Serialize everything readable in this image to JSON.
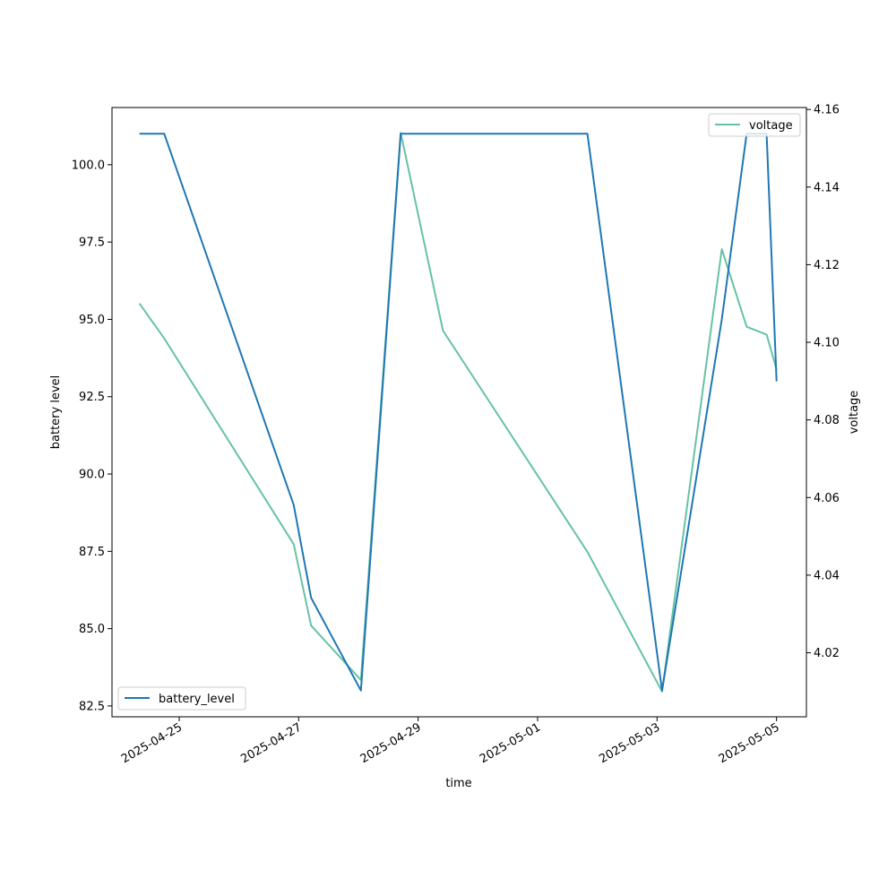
{
  "chart_data": {
    "type": "line",
    "xlabel": "time",
    "ylabel": "battery level",
    "y2label": "voltage",
    "xlim": [
      "2025-04-23 21:00",
      "2025-05-05 12:00"
    ],
    "ylim": [
      82.15,
      101.85
    ],
    "y2lim": [
      4.0035,
      4.1605
    ],
    "x_ticks": [
      "2025-04-25",
      "2025-04-27",
      "2025-04-29",
      "2025-05-01",
      "2025-05-03",
      "2025-05-05"
    ],
    "y_ticks": [
      "82.5",
      "85.0",
      "87.5",
      "90.0",
      "92.5",
      "95.0",
      "97.5",
      "100.0"
    ],
    "y2_ticks": [
      "4.02",
      "4.04",
      "4.06",
      "4.08",
      "4.10",
      "4.12",
      "4.14",
      "4.16"
    ],
    "grid": false,
    "series": [
      {
        "name": "battery_level",
        "axis": "left",
        "color": "#1f77b4",
        "legend": "lower-left",
        "points": [
          {
            "x": "2025-04-24 08:00",
            "y": 101
          },
          {
            "x": "2025-04-24 18:00",
            "y": 101
          },
          {
            "x": "2025-04-26 22:00",
            "y": 89
          },
          {
            "x": "2025-04-27 05:00",
            "y": 86
          },
          {
            "x": "2025-04-28 01:00",
            "y": 83
          },
          {
            "x": "2025-04-28 17:00",
            "y": 101
          },
          {
            "x": "2025-05-01 20:00",
            "y": 101
          },
          {
            "x": "2025-05-03 02:00",
            "y": 83
          },
          {
            "x": "2025-05-04 02:00",
            "y": 95
          },
          {
            "x": "2025-05-04 12:00",
            "y": 101
          },
          {
            "x": "2025-05-04 20:00",
            "y": 101
          },
          {
            "x": "2025-05-05 00:00",
            "y": 93
          }
        ]
      },
      {
        "name": "voltage",
        "axis": "right",
        "color": "#66c2a5",
        "legend": "upper-right",
        "points": [
          {
            "x": "2025-04-24 08:00",
            "y": 4.11
          },
          {
            "x": "2025-04-24 18:00",
            "y": 4.101
          },
          {
            "x": "2025-04-26 22:00",
            "y": 4.048
          },
          {
            "x": "2025-04-27 05:00",
            "y": 4.027
          },
          {
            "x": "2025-04-28 01:00",
            "y": 4.013
          },
          {
            "x": "2025-04-28 17:00",
            "y": 4.154
          },
          {
            "x": "2025-04-29 10:00",
            "y": 4.103
          },
          {
            "x": "2025-05-01 20:00",
            "y": 4.046
          },
          {
            "x": "2025-05-03 02:00",
            "y": 4.01
          },
          {
            "x": "2025-05-04 02:00",
            "y": 4.124
          },
          {
            "x": "2025-05-04 12:00",
            "y": 4.104
          },
          {
            "x": "2025-05-04 20:00",
            "y": 4.102
          },
          {
            "x": "2025-05-05 00:00",
            "y": 4.093
          }
        ]
      }
    ]
  }
}
